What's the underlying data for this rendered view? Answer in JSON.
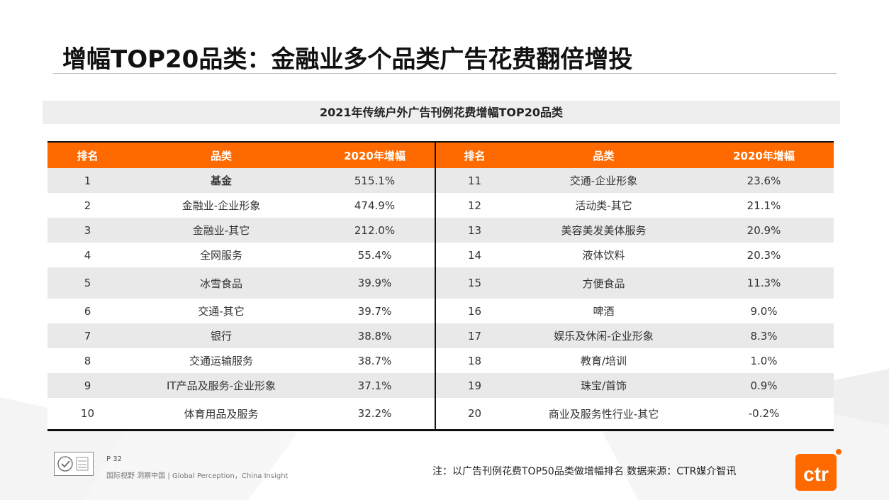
{
  "title": "增幅TOP20品类：金融业多个品类广告花费翻倍增投",
  "caption": "2021年传统户外广告刊例花费增幅TOP20品类",
  "headers": {
    "rank": "排名",
    "category": "品类",
    "growth": "2020年增幅"
  },
  "rows_left": [
    {
      "rank": "1",
      "category": "基金",
      "growth": "515.1%"
    },
    {
      "rank": "2",
      "category": "金融业-企业形象",
      "growth": "474.9%"
    },
    {
      "rank": "3",
      "category": "金融业-其它",
      "growth": "212.0%"
    },
    {
      "rank": "4",
      "category": "全网服务",
      "growth": "55.4%"
    },
    {
      "rank": "5",
      "category": "冰雪食品",
      "growth": "39.9%"
    },
    {
      "rank": "6",
      "category": "交通-其它",
      "growth": "39.7%"
    },
    {
      "rank": "7",
      "category": "银行",
      "growth": "38.8%"
    },
    {
      "rank": "8",
      "category": "交通运输服务",
      "growth": "38.7%"
    },
    {
      "rank": "9",
      "category": "IT产品及服务-企业形象",
      "growth": "37.1%"
    },
    {
      "rank": "10",
      "category": "体育用品及服务",
      "growth": "32.2%"
    }
  ],
  "rows_right": [
    {
      "rank": "11",
      "category": "交通-企业形象",
      "growth": "23.6%"
    },
    {
      "rank": "12",
      "category": "活动类-其它",
      "growth": "21.1%"
    },
    {
      "rank": "13",
      "category": "美容美发美体服务",
      "growth": "20.9%"
    },
    {
      "rank": "14",
      "category": "液体饮料",
      "growth": "20.3%"
    },
    {
      "rank": "15",
      "category": "方便食品",
      "growth": "11.3%"
    },
    {
      "rank": "16",
      "category": "啤酒",
      "growth": "9.0%"
    },
    {
      "rank": "17",
      "category": "娱乐及休闲-企业形象",
      "growth": "8.3%"
    },
    {
      "rank": "18",
      "category": "教育/培训",
      "growth": "1.0%"
    },
    {
      "rank": "19",
      "category": "珠宝/首饰",
      "growth": "0.9%"
    },
    {
      "rank": "20",
      "category": "商业及服务性行业-其它",
      "growth": "-0.2%"
    }
  ],
  "footer": {
    "page": "P 32",
    "tagline": "国际视野 洞察中国 | Global Perception，China Insight",
    "note": "注：以广告刊例花费TOP50品类做增幅排名   数据来源：CTR媒介智讯",
    "logo_text": "ctr"
  },
  "colors": {
    "accent": "#ff6a00",
    "stripe": "#e9e9e9"
  }
}
